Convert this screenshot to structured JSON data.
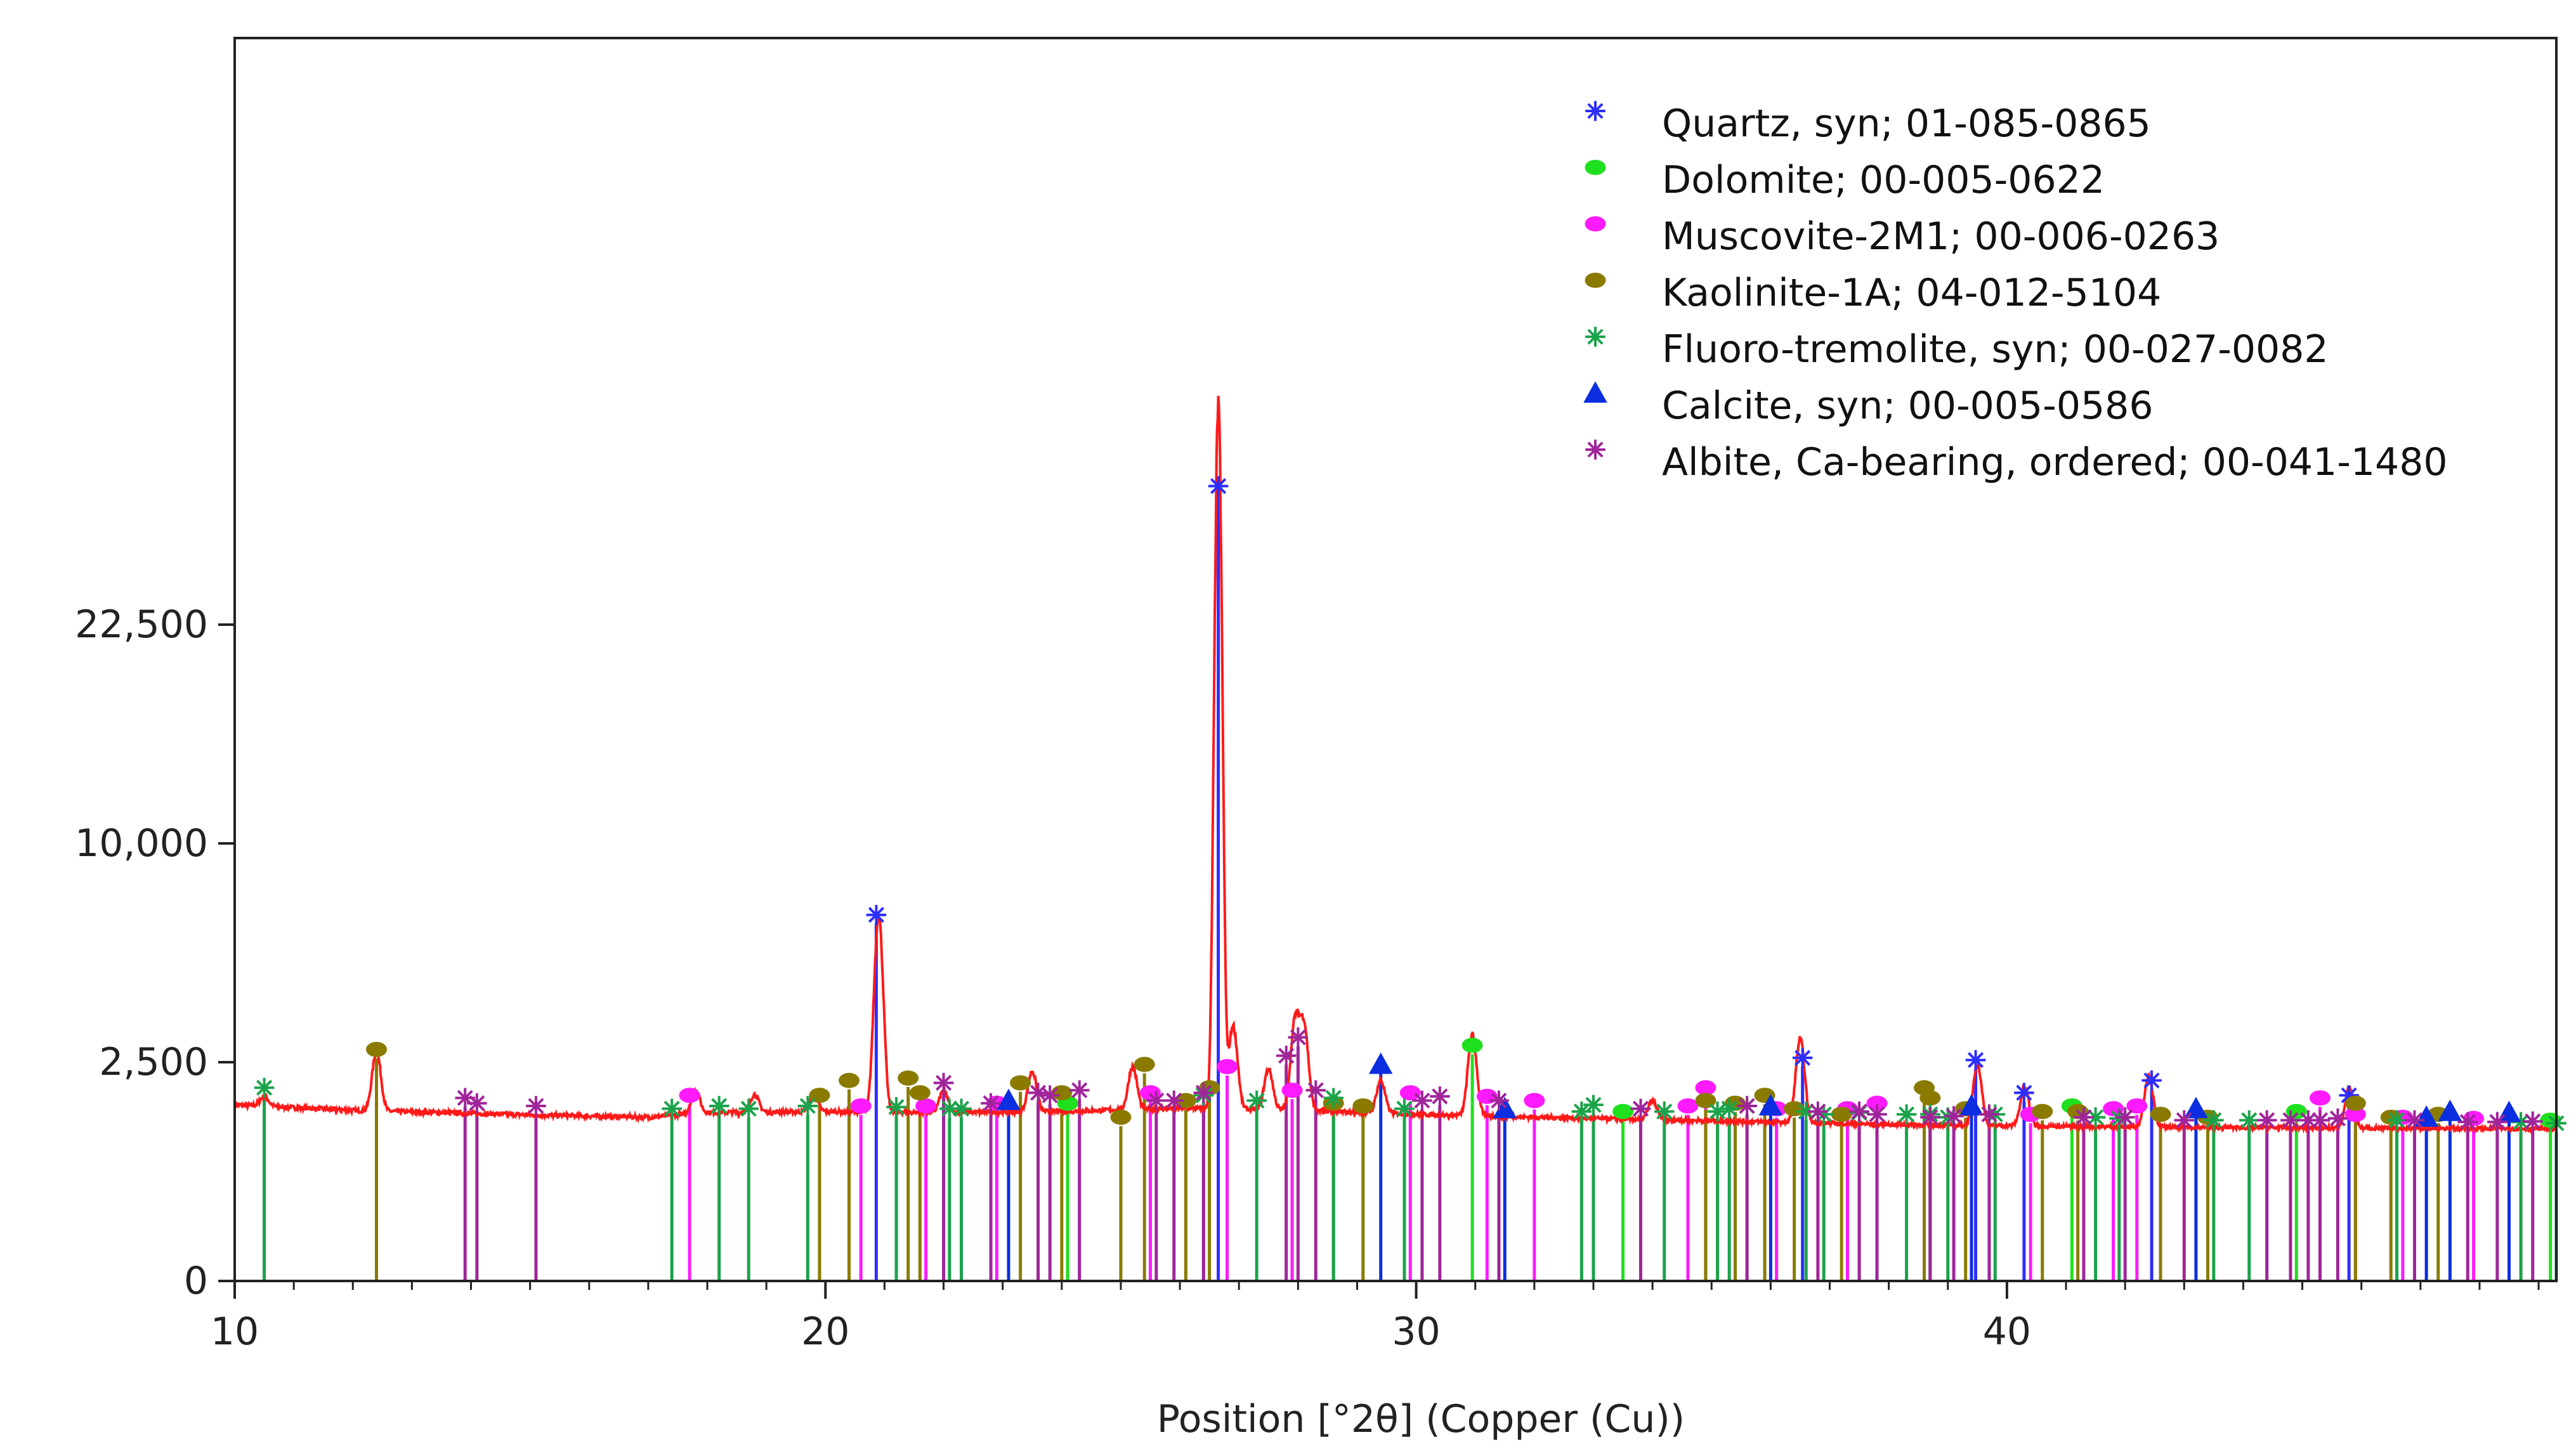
{
  "chart_data": {
    "type": "line",
    "title": "",
    "xlabel": "Position [°2θ] (Copper (Cu))",
    "ylabel": "",
    "xlim": [
      10,
      49.3
    ],
    "ylim_note": "square-root intensity scale",
    "ylim": [
      0,
      40000
    ],
    "y_ticks": [
      {
        "value": 0,
        "label": "0"
      },
      {
        "value": 2500,
        "label": "2,500"
      },
      {
        "value": 10000,
        "label": "10,000"
      },
      {
        "value": 22500,
        "label": "22,500"
      }
    ],
    "x_ticks": [
      {
        "value": 10,
        "label": "10"
      },
      {
        "value": 20,
        "label": "20"
      },
      {
        "value": 30,
        "label": "30"
      },
      {
        "value": 40,
        "label": "40"
      }
    ],
    "x_minor_step": 1,
    "grid": false,
    "legend_position": "top-right",
    "pattern": {
      "name": "Measured pattern",
      "color": "#ff1a1a",
      "background": [
        [
          10,
          1620
        ],
        [
          12,
          1520
        ],
        [
          15,
          1440
        ],
        [
          17,
          1400
        ],
        [
          18,
          1480
        ],
        [
          20,
          1500
        ],
        [
          22,
          1480
        ],
        [
          24,
          1500
        ],
        [
          26,
          1560
        ],
        [
          28,
          1520
        ],
        [
          30,
          1450
        ],
        [
          32,
          1400
        ],
        [
          34,
          1360
        ],
        [
          36,
          1320
        ],
        [
          38,
          1280
        ],
        [
          40,
          1260
        ],
        [
          42,
          1240
        ],
        [
          44,
          1230
        ],
        [
          46,
          1220
        ],
        [
          49.3,
          1210
        ]
      ],
      "peaks": [
        [
          10.5,
          1780
        ],
        [
          12.4,
          2750
        ],
        [
          17.8,
          1900
        ],
        [
          18.8,
          1820
        ],
        [
          19.8,
          1800
        ],
        [
          20.9,
          7000
        ],
        [
          22.0,
          1900
        ],
        [
          23.5,
          2300
        ],
        [
          25.2,
          2400
        ],
        [
          26.65,
          40000
        ],
        [
          26.9,
          3400
        ],
        [
          27.5,
          2350
        ],
        [
          27.95,
          3500
        ],
        [
          28.1,
          3400
        ],
        [
          29.4,
          2100
        ],
        [
          30.95,
          3150
        ],
        [
          34.0,
          1700
        ],
        [
          36.5,
          3050
        ],
        [
          39.5,
          2450
        ],
        [
          40.3,
          1950
        ],
        [
          42.4,
          2200
        ],
        [
          45.8,
          1950
        ]
      ]
    },
    "series": [
      {
        "name": "Quartz, syn; 01-085-0865",
        "color": "#2d2dff",
        "marker": "asterisk",
        "peaks": [
          [
            20.86,
            7000
          ],
          [
            26.65,
            33000
          ],
          [
            36.54,
            2600
          ],
          [
            39.47,
            2550
          ],
          [
            40.29,
            1850
          ],
          [
            42.45,
            2100
          ],
          [
            45.79,
            1800
          ]
        ]
      },
      {
        "name": "Dolomite; 00-005-0622",
        "color": "#1fe01f",
        "marker": "dot",
        "peaks": [
          [
            24.1,
            1650
          ],
          [
            30.95,
            2900
          ],
          [
            33.5,
            1500
          ],
          [
            41.1,
            1600
          ],
          [
            44.9,
            1500
          ],
          [
            49.2,
            1350
          ]
        ]
      },
      {
        "name": "Muscovite-2M1; 00-006-0263",
        "color": "#ff1aff",
        "marker": "dot",
        "peaks": [
          [
            17.7,
            1800
          ],
          [
            20.6,
            1600
          ],
          [
            21.7,
            1600
          ],
          [
            22.9,
            1650
          ],
          [
            25.5,
            1850
          ],
          [
            26.8,
            2400
          ],
          [
            27.9,
            1900
          ],
          [
            29.9,
            1850
          ],
          [
            31.2,
            1780
          ],
          [
            32.0,
            1700
          ],
          [
            34.6,
            1600
          ],
          [
            34.9,
            1950
          ],
          [
            36.1,
            1550
          ],
          [
            37.3,
            1550
          ],
          [
            37.8,
            1650
          ],
          [
            40.4,
            1450
          ],
          [
            41.8,
            1550
          ],
          [
            42.2,
            1600
          ],
          [
            45.3,
            1750
          ],
          [
            45.9,
            1450
          ],
          [
            46.7,
            1400
          ],
          [
            47.9,
            1380
          ]
        ]
      },
      {
        "name": "Kaolinite-1A; 04-012-5104",
        "color": "#8a7b00",
        "marker": "dot",
        "peaks": [
          [
            12.4,
            2800
          ],
          [
            19.9,
            1800
          ],
          [
            20.4,
            2100
          ],
          [
            21.4,
            2150
          ],
          [
            21.6,
            1850
          ],
          [
            23.3,
            2050
          ],
          [
            24.0,
            1850
          ],
          [
            25.0,
            1400
          ],
          [
            25.4,
            2450
          ],
          [
            26.1,
            1700
          ],
          [
            26.5,
            1950
          ],
          [
            28.6,
            1650
          ],
          [
            29.1,
            1600
          ],
          [
            34.9,
            1700
          ],
          [
            35.4,
            1650
          ],
          [
            35.9,
            1800
          ],
          [
            36.4,
            1550
          ],
          [
            37.2,
            1450
          ],
          [
            38.6,
            1950
          ],
          [
            38.7,
            1750
          ],
          [
            39.3,
            1550
          ],
          [
            40.6,
            1500
          ],
          [
            41.2,
            1500
          ],
          [
            42.6,
            1450
          ],
          [
            43.4,
            1400
          ],
          [
            45.9,
            1650
          ],
          [
            46.5,
            1400
          ],
          [
            47.3,
            1450
          ]
        ]
      },
      {
        "name": "Fluoro-tremolite, syn; 00-027-0082",
        "color": "#1aa34a",
        "marker": "asterisk",
        "peaks": [
          [
            10.5,
            1950
          ],
          [
            17.4,
            1550
          ],
          [
            18.2,
            1600
          ],
          [
            18.7,
            1550
          ],
          [
            19.7,
            1600
          ],
          [
            21.2,
            1580
          ],
          [
            22.1,
            1550
          ],
          [
            22.3,
            1550
          ],
          [
            26.4,
            1800
          ],
          [
            27.3,
            1700
          ],
          [
            28.6,
            1750
          ],
          [
            29.8,
            1550
          ],
          [
            32.8,
            1500
          ],
          [
            33.0,
            1620
          ],
          [
            34.2,
            1500
          ],
          [
            35.1,
            1500
          ],
          [
            35.3,
            1550
          ],
          [
            35.6,
            1600
          ],
          [
            36.6,
            1500
          ],
          [
            36.9,
            1450
          ],
          [
            37.5,
            1480
          ],
          [
            38.3,
            1450
          ],
          [
            38.7,
            1450
          ],
          [
            39.0,
            1400
          ],
          [
            39.8,
            1450
          ],
          [
            41.5,
            1400
          ],
          [
            41.9,
            1380
          ],
          [
            43.5,
            1350
          ],
          [
            44.1,
            1350
          ],
          [
            46.6,
            1350
          ],
          [
            48.7,
            1320
          ],
          [
            49.3,
            1300
          ]
        ]
      },
      {
        "name": "Calcite, syn; 00-005-0586",
        "color": "#0a2ee0",
        "marker": "triangle",
        "peaks": [
          [
            23.1,
            1700
          ],
          [
            29.4,
            2450
          ],
          [
            31.5,
            1550
          ],
          [
            36.0,
            1600
          ],
          [
            39.4,
            1600
          ],
          [
            43.2,
            1550
          ],
          [
            47.1,
            1400
          ],
          [
            47.5,
            1500
          ],
          [
            48.5,
            1480
          ]
        ]
      },
      {
        "name": "Albite, Ca-bearing, ordered; 00-041-1480",
        "color": "#a0259a",
        "marker": "asterisk",
        "peaks": [
          [
            13.9,
            1750
          ],
          [
            14.1,
            1650
          ],
          [
            15.1,
            1600
          ],
          [
            22.0,
            2050
          ],
          [
            22.8,
            1650
          ],
          [
            23.6,
            1850
          ],
          [
            23.8,
            1800
          ],
          [
            24.3,
            1900
          ],
          [
            25.6,
            1700
          ],
          [
            25.9,
            1700
          ],
          [
            26.4,
            1850
          ],
          [
            27.8,
            2650
          ],
          [
            28.0,
            3100
          ],
          [
            28.3,
            1900
          ],
          [
            30.1,
            1700
          ],
          [
            30.4,
            1780
          ],
          [
            31.4,
            1700
          ],
          [
            33.8,
            1550
          ],
          [
            35.6,
            1600
          ],
          [
            36.8,
            1500
          ],
          [
            37.5,
            1500
          ],
          [
            37.8,
            1450
          ],
          [
            38.7,
            1400
          ],
          [
            39.1,
            1420
          ],
          [
            39.7,
            1450
          ],
          [
            41.3,
            1400
          ],
          [
            42.0,
            1400
          ],
          [
            43.0,
            1350
          ],
          [
            44.4,
            1350
          ],
          [
            44.8,
            1350
          ],
          [
            45.1,
            1350
          ],
          [
            45.3,
            1350
          ],
          [
            45.6,
            1380
          ],
          [
            46.9,
            1350
          ],
          [
            47.8,
            1320
          ],
          [
            48.3,
            1320
          ],
          [
            48.9,
            1330
          ]
        ]
      }
    ]
  }
}
